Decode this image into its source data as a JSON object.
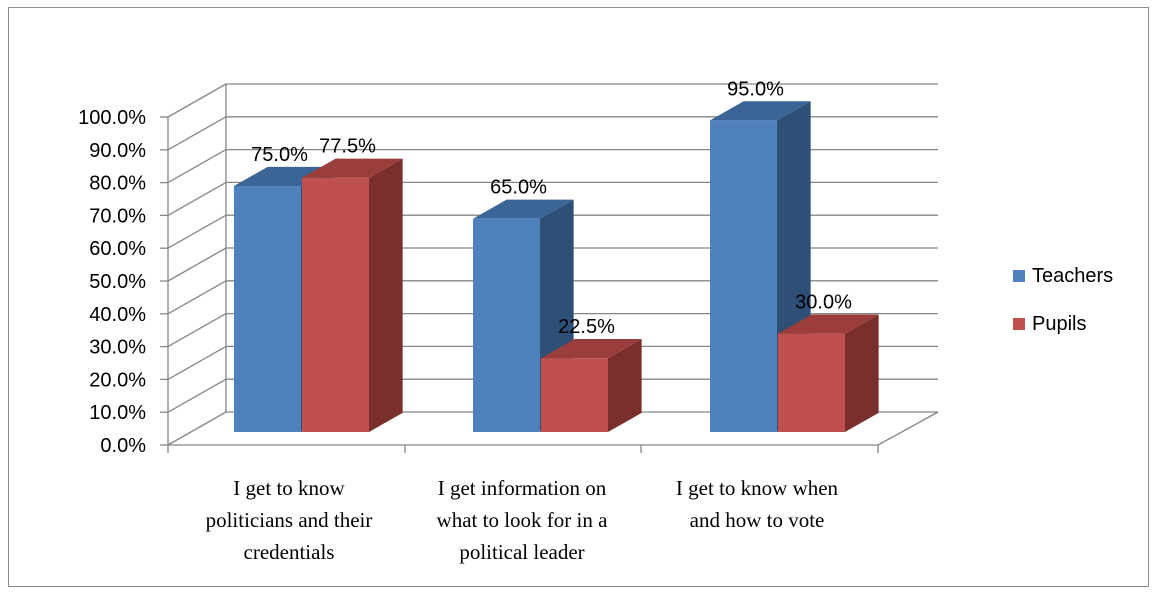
{
  "chart_data": {
    "type": "bar",
    "title": "",
    "xlabel": "",
    "ylabel": "",
    "ylim": [
      0,
      100
    ],
    "ytick_step": 10,
    "ytick_format": "percent_1dp",
    "three_d": true,
    "grid": true,
    "legend_position": "right",
    "categories": [
      [
        "I get to know",
        "politicians and their",
        "credentials"
      ],
      [
        "I get information on",
        "what to look for in a",
        "political leader"
      ],
      [
        "I get to know when",
        "and how to vote"
      ]
    ],
    "series": [
      {
        "name": "Teachers",
        "values": [
          75.0,
          65.0,
          95.0
        ],
        "color": "#4F81BD",
        "side_color": "#2E4F76",
        "top_color": "#3B6596"
      },
      {
        "name": "Pupils",
        "values": [
          77.5,
          22.5,
          30.0
        ],
        "color": "#C0504D",
        "side_color": "#7A2F2D",
        "top_color": "#9B3D3A"
      }
    ],
    "data_labels": [
      [
        "75.0%",
        "65.0%",
        "95.0%"
      ],
      [
        "77.5%",
        "22.5%",
        "30.0%"
      ]
    ],
    "ytick_labels": [
      "0.0%",
      "10.0%",
      "20.0%",
      "30.0%",
      "40.0%",
      "50.0%",
      "60.0%",
      "70.0%",
      "80.0%",
      "90.0%",
      "100.0%"
    ]
  }
}
